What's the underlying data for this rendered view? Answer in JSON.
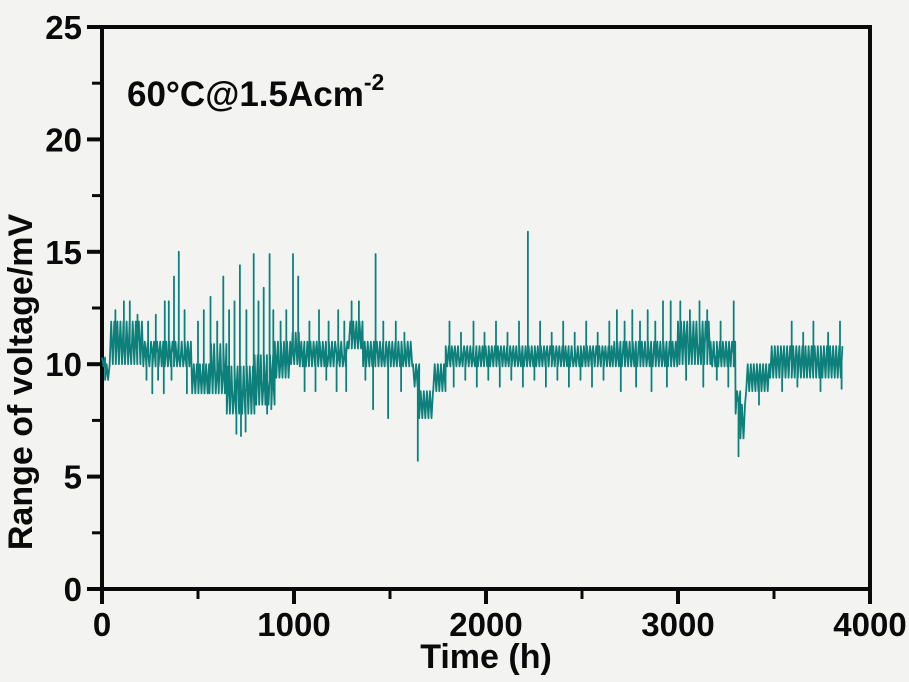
{
  "figure": {
    "annotation": {
      "text": "60°C@1.5Acm",
      "sup": "-2"
    },
    "axes": {
      "x": {
        "label": "Time (h)",
        "range": [
          0,
          4000
        ],
        "major_ticks": [
          0,
          1000,
          2000,
          3000,
          4000
        ],
        "minor_step": 500
      },
      "y": {
        "label": "Range of voltage/mV",
        "range": [
          0,
          25
        ],
        "major_ticks": [
          0,
          5,
          10,
          15,
          20,
          25
        ],
        "minor_step": 2.5
      }
    },
    "colors": {
      "trace": "#0e807b",
      "axis": "#0a0a0a",
      "text": "#0a0a0a",
      "background": "#f3f4f2"
    }
  },
  "chart_data": {
    "type": "line",
    "title": "",
    "annotation": "60°C@1.5Acm⁻²",
    "xlabel": "Time (h)",
    "ylabel": "Range of voltage/mV",
    "xlim": [
      0,
      4000
    ],
    "ylim": [
      0,
      25
    ],
    "grid": false,
    "legend": "none",
    "series": [
      {
        "name": "voltage-range-trace",
        "style": "noisy square-wave band between low/high with narrow vertical spikes",
        "sample_step_h": 8,
        "band_segments": [
          [
            0,
            16,
            9.9,
            10.3
          ],
          [
            16,
            40,
            9.3,
            10.0
          ],
          [
            40,
            215,
            10.0,
            11.9
          ],
          [
            215,
            470,
            9.9,
            11.0
          ],
          [
            470,
            560,
            8.7,
            10.0
          ],
          [
            560,
            650,
            8.7,
            10.9
          ],
          [
            650,
            795,
            7.8,
            9.9
          ],
          [
            795,
            900,
            8.2,
            10.4
          ],
          [
            900,
            985,
            9.4,
            11.0
          ],
          [
            985,
            1030,
            10.0,
            11.4
          ],
          [
            1030,
            1285,
            9.9,
            11.0
          ],
          [
            1285,
            1360,
            10.7,
            11.9
          ],
          [
            1360,
            1620,
            9.9,
            11.0
          ],
          [
            1620,
            1652,
            9.0,
            10.0
          ],
          [
            1652,
            1725,
            7.6,
            8.8
          ],
          [
            1725,
            1790,
            8.8,
            10.0
          ],
          [
            1790,
            2660,
            9.9,
            10.8
          ],
          [
            2660,
            3000,
            9.9,
            11.0
          ],
          [
            3000,
            3170,
            10.0,
            11.9
          ],
          [
            3170,
            3300,
            9.9,
            11.0
          ],
          [
            3300,
            3325,
            7.8,
            8.8
          ],
          [
            3325,
            3355,
            6.7,
            8.2
          ],
          [
            3355,
            3480,
            8.8,
            10.0
          ],
          [
            3480,
            3860,
            9.4,
            10.8
          ]
        ],
        "spikes_up": [
          [
            70,
            12.4
          ],
          [
            114,
            12.8
          ],
          [
            145,
            12.8
          ],
          [
            185,
            12.2
          ],
          [
            240,
            11.9
          ],
          [
            280,
            12.2
          ],
          [
            327,
            12.8
          ],
          [
            348,
            12.8
          ],
          [
            375,
            13.9
          ],
          [
            400,
            15.0
          ],
          [
            430,
            12.4
          ],
          [
            500,
            11.9
          ],
          [
            530,
            12.4
          ],
          [
            565,
            13.0
          ],
          [
            600,
            11.9
          ],
          [
            632,
            13.9
          ],
          [
            662,
            12.4
          ],
          [
            690,
            12.8
          ],
          [
            718,
            14.4
          ],
          [
            752,
            12.4
          ],
          [
            790,
            14.9
          ],
          [
            815,
            12.8
          ],
          [
            842,
            13.4
          ],
          [
            873,
            14.9
          ],
          [
            892,
            12.4
          ],
          [
            930,
            11.9
          ],
          [
            960,
            12.4
          ],
          [
            995,
            14.9
          ],
          [
            1022,
            13.9
          ],
          [
            1080,
            11.9
          ],
          [
            1130,
            12.4
          ],
          [
            1180,
            11.9
          ],
          [
            1230,
            12.4
          ],
          [
            1262,
            11.9
          ],
          [
            1300,
            12.8
          ],
          [
            1338,
            12.8
          ],
          [
            1425,
            14.9
          ],
          [
            1465,
            11.9
          ],
          [
            1530,
            11.9
          ],
          [
            1575,
            11.4
          ],
          [
            1810,
            11.9
          ],
          [
            1870,
            11.4
          ],
          [
            1935,
            11.9
          ],
          [
            1992,
            11.4
          ],
          [
            2052,
            11.9
          ],
          [
            2112,
            11.4
          ],
          [
            2172,
            11.9
          ],
          [
            2218,
            15.9
          ],
          [
            2282,
            11.9
          ],
          [
            2342,
            11.4
          ],
          [
            2402,
            11.9
          ],
          [
            2462,
            11.4
          ],
          [
            2522,
            11.9
          ],
          [
            2582,
            11.4
          ],
          [
            2642,
            11.9
          ],
          [
            2682,
            12.4
          ],
          [
            2722,
            11.9
          ],
          [
            2762,
            12.4
          ],
          [
            2802,
            11.9
          ],
          [
            2842,
            12.4
          ],
          [
            2882,
            11.9
          ],
          [
            2922,
            12.8
          ],
          [
            2962,
            12.8
          ],
          [
            3012,
            12.8
          ],
          [
            3062,
            12.4
          ],
          [
            3112,
            12.8
          ],
          [
            3152,
            12.4
          ],
          [
            3222,
            11.9
          ],
          [
            3290,
            12.8
          ],
          [
            3592,
            11.9
          ],
          [
            3652,
            11.4
          ],
          [
            3705,
            11.9
          ],
          [
            3782,
            11.4
          ],
          [
            3844,
            11.9
          ]
        ],
        "spikes_down": [
          [
            232,
            9.3
          ],
          [
            262,
            8.7
          ],
          [
            292,
            9.3
          ],
          [
            322,
            8.7
          ],
          [
            362,
            9.3
          ],
          [
            442,
            8.7
          ],
          [
            700,
            6.9
          ],
          [
            724,
            6.8
          ],
          [
            748,
            7.0
          ],
          [
            860,
            7.8
          ],
          [
            882,
            8.0
          ],
          [
            1055,
            8.8
          ],
          [
            1112,
            8.8
          ],
          [
            1168,
            9.3
          ],
          [
            1222,
            8.8
          ],
          [
            1272,
            8.8
          ],
          [
            1372,
            9.3
          ],
          [
            1412,
            8.0
          ],
          [
            1490,
            7.6
          ],
          [
            1558,
            8.8
          ],
          [
            1645,
            5.7
          ],
          [
            1832,
            9.0
          ],
          [
            1892,
            9.3
          ],
          [
            1952,
            9.0
          ],
          [
            2012,
            9.3
          ],
          [
            2072,
            9.0
          ],
          [
            2132,
            9.3
          ],
          [
            2192,
            9.0
          ],
          [
            2252,
            9.3
          ],
          [
            2312,
            9.0
          ],
          [
            2372,
            9.3
          ],
          [
            2432,
            9.0
          ],
          [
            2492,
            9.3
          ],
          [
            2552,
            9.0
          ],
          [
            2612,
            9.3
          ],
          [
            2702,
            8.8
          ],
          [
            2782,
            9.0
          ],
          [
            2862,
            8.8
          ],
          [
            2942,
            9.0
          ],
          [
            3042,
            9.3
          ],
          [
            3132,
            9.0
          ],
          [
            3202,
            9.3
          ],
          [
            3262,
            9.0
          ],
          [
            3315,
            5.9
          ],
          [
            3422,
            8.2
          ],
          [
            3542,
            8.8
          ],
          [
            3622,
            9.0
          ],
          [
            3742,
            8.8
          ],
          [
            3852,
            8.9
          ]
        ]
      }
    ]
  }
}
